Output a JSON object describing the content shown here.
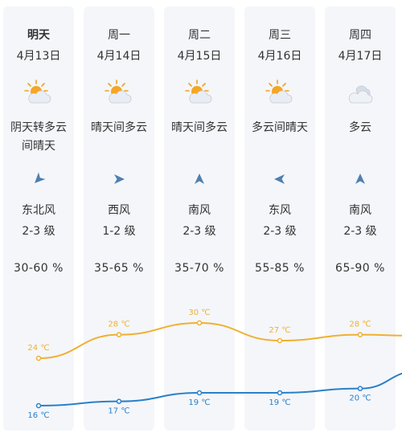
{
  "colors": {
    "high": "#f0b030",
    "low": "#2a80c8",
    "card": "#f4f6fa"
  },
  "days": [
    {
      "name": "明天",
      "date": "4月13日",
      "icon": "partly-sunny-icon",
      "condition_1": "阴天转多云",
      "condition_2": "间晴天",
      "wind_arrow": "wind-arrow-icon",
      "wind_dir": "东北风",
      "wind_level": "2-3 级",
      "humidity": "30-60 %",
      "high": "24 ℃",
      "low": "16 ℃",
      "high_val": 24,
      "low_val": 16
    },
    {
      "name": "周一",
      "date": "4月14日",
      "icon": "partly-sunny-icon",
      "condition_1": "晴天间多云",
      "condition_2": "",
      "wind_arrow": "wind-arrow-icon",
      "wind_dir": "西风",
      "wind_level": "1-2 级",
      "humidity": "35-65 %",
      "high": "28 ℃",
      "low": "17 ℃",
      "high_val": 28,
      "low_val": 17
    },
    {
      "name": "周二",
      "date": "4月15日",
      "icon": "partly-sunny-icon",
      "condition_1": "晴天间多云",
      "condition_2": "",
      "wind_arrow": "wind-arrow-icon",
      "wind_dir": "南风",
      "wind_level": "2-3 级",
      "humidity": "35-70 %",
      "high": "30 ℃",
      "low": "19 ℃",
      "high_val": 30,
      "low_val": 19
    },
    {
      "name": "周三",
      "date": "4月16日",
      "icon": "partly-sunny-icon",
      "condition_1": "多云间晴天",
      "condition_2": "",
      "wind_arrow": "wind-arrow-icon",
      "wind_dir": "东风",
      "wind_level": "2-3 级",
      "humidity": "55-85 %",
      "high": "27 ℃",
      "low": "19 ℃",
      "high_val": 27,
      "low_val": 19
    },
    {
      "name": "周四",
      "date": "4月17日",
      "icon": "cloudy-icon",
      "condition_1": "多云",
      "condition_2": "",
      "wind_arrow": "wind-arrow-icon",
      "wind_dir": "南风",
      "wind_level": "2-3 级",
      "humidity": "65-90 %",
      "high": "28 ℃",
      "low": "20 ℃",
      "high_val": 28,
      "low_val": 20
    }
  ]
}
